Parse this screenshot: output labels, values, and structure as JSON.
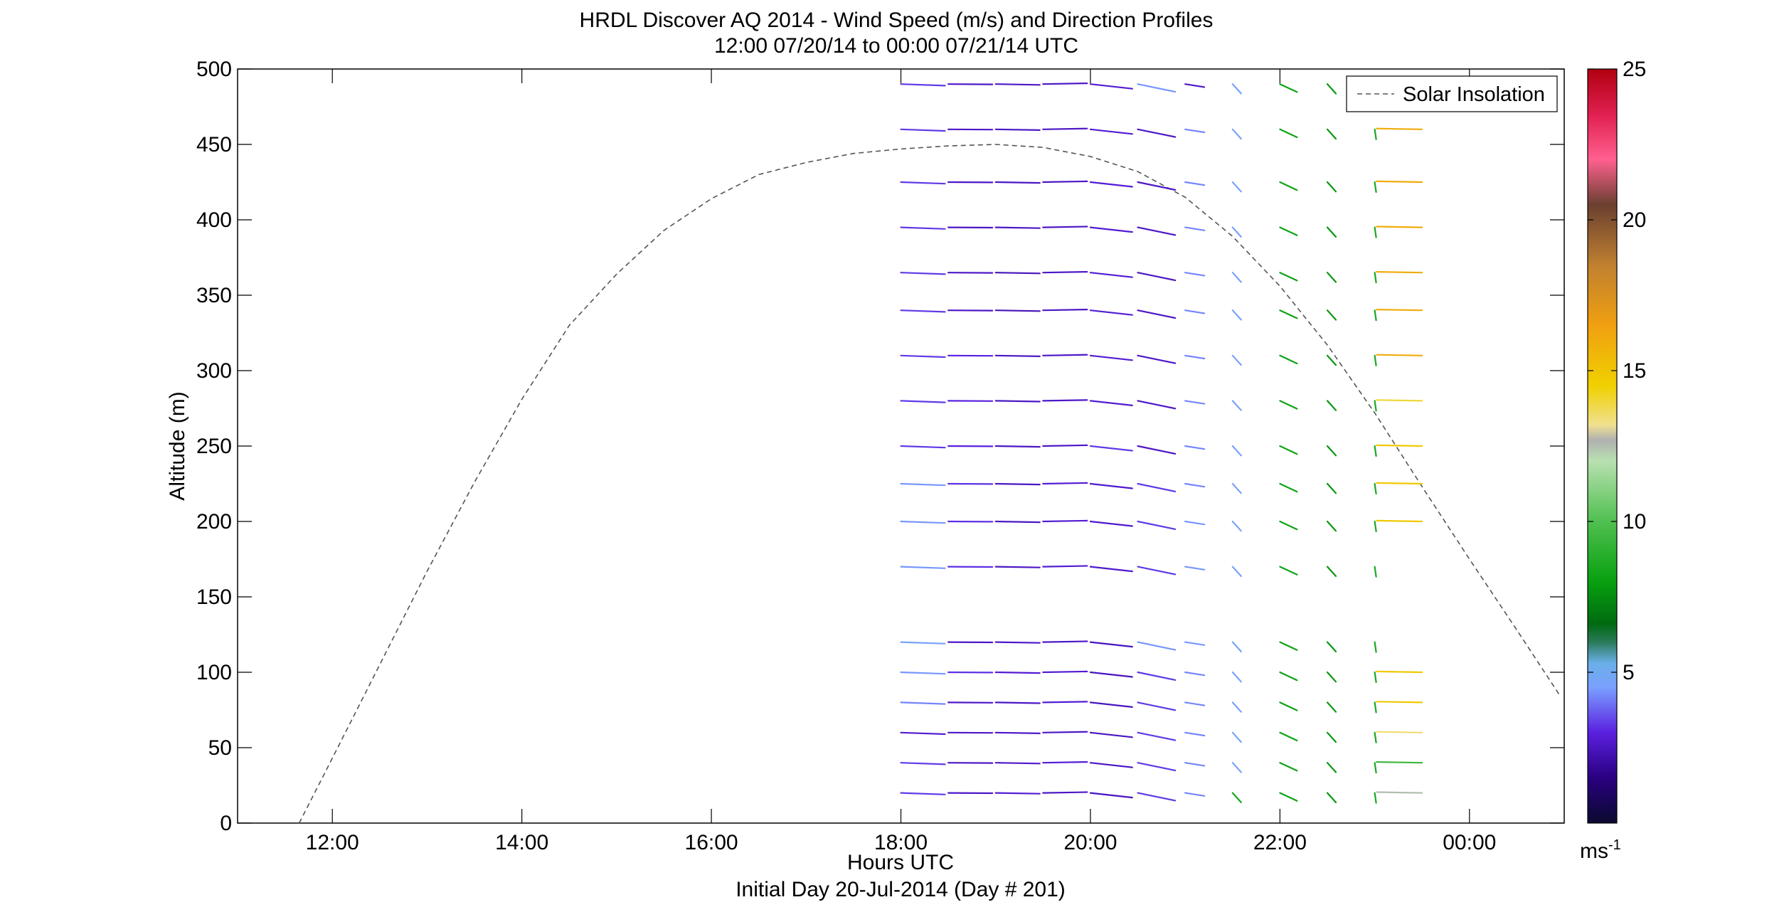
{
  "chart_data": {
    "type": "wind-barb-profile",
    "title": "HRDL Discover AQ 2014 - Wind Speed (m/s) and Direction Profiles",
    "subtitle": "12:00 07/20/14 to 00:00 07/21/14  UTC",
    "xlabel": "Hours UTC",
    "xlabel2": "Initial Day 20-Jul-2014 (Day # 201)",
    "ylabel": "Altitude (m)",
    "xlim": [
      11.0,
      25.0
    ],
    "ylim": [
      0,
      500
    ],
    "x_ticks": [
      {
        "value": 12,
        "label": "12:00"
      },
      {
        "value": 14,
        "label": "14:00"
      },
      {
        "value": 16,
        "label": "16:00"
      },
      {
        "value": 18,
        "label": "18:00"
      },
      {
        "value": 20,
        "label": "20:00"
      },
      {
        "value": 22,
        "label": "22:00"
      },
      {
        "value": 24,
        "label": "00:00"
      }
    ],
    "y_ticks": [
      0,
      50,
      100,
      150,
      200,
      250,
      300,
      350,
      400,
      450,
      500
    ],
    "legend": {
      "entries": [
        "Solar Insolation"
      ],
      "placement": "top-right"
    },
    "colorbar": {
      "range": [
        0,
        25
      ],
      "ticks": [
        5,
        10,
        15,
        20,
        25
      ],
      "unit_label": "ms",
      "unit_exponent": "-1",
      "stops": [
        {
          "v": 0,
          "c": "#0a0a30"
        },
        {
          "v": 1.5,
          "c": "#2a0080"
        },
        {
          "v": 3,
          "c": "#5a20e0"
        },
        {
          "v": 4.5,
          "c": "#7aa0ff"
        },
        {
          "v": 5.3,
          "c": "#6ab0e8"
        },
        {
          "v": 6,
          "c": "#2a7a5a"
        },
        {
          "v": 6.6,
          "c": "#006a10"
        },
        {
          "v": 8,
          "c": "#08a010"
        },
        {
          "v": 10,
          "c": "#50c050"
        },
        {
          "v": 12,
          "c": "#b8e0b0"
        },
        {
          "v": 12.7,
          "c": "#b0b0b0"
        },
        {
          "v": 13.2,
          "c": "#f0e090"
        },
        {
          "v": 14.5,
          "c": "#f0d000"
        },
        {
          "v": 16.5,
          "c": "#f0a010"
        },
        {
          "v": 18.5,
          "c": "#c08030"
        },
        {
          "v": 20.5,
          "c": "#6a4030"
        },
        {
          "v": 22,
          "c": "#ff6090"
        },
        {
          "v": 23.5,
          "c": "#e02050"
        },
        {
          "v": 25,
          "c": "#b00010"
        }
      ]
    },
    "solar_insolation": {
      "x": [
        11.65,
        12.0,
        12.5,
        13.0,
        13.5,
        14.0,
        14.5,
        15.0,
        15.5,
        16.0,
        16.5,
        17.0,
        17.5,
        18.0,
        18.5,
        19.0,
        19.5,
        20.0,
        20.5,
        21.0,
        21.5,
        22.0,
        22.5,
        23.0,
        23.5,
        24.0,
        24.5,
        24.95
      ],
      "y": [
        0,
        43,
        105,
        167,
        226,
        281,
        330,
        364,
        393,
        414,
        430,
        438,
        444,
        447,
        449,
        450,
        448,
        442,
        432,
        415,
        389,
        356,
        317,
        272,
        223,
        175,
        128,
        85
      ]
    },
    "wind_profiles": {
      "times": [
        18.0,
        18.5,
        19.0,
        19.5,
        20.0,
        20.5,
        21.0,
        21.5,
        22.0,
        22.5,
        23.0,
        23.5
      ],
      "altitudes": [
        20,
        40,
        60,
        80,
        100,
        120,
        170,
        200,
        225,
        250,
        280,
        310,
        340,
        365,
        395,
        425,
        460,
        490
      ],
      "speed_rows": [
        [
          3.3,
          2.6,
          2.8,
          2.6,
          2.5,
          3.3,
          4.2,
          8.5,
          8.2,
          7.8,
          8.5,
          12.5
        ],
        [
          3.3,
          2.6,
          2.6,
          2.8,
          2.5,
          3.3,
          4.2,
          4.6,
          8.2,
          7.8,
          8.5,
          9.5
        ],
        [
          2.8,
          2.6,
          2.6,
          2.6,
          2.5,
          3.3,
          4.2,
          4.6,
          8.2,
          7.8,
          8.5,
          13.5
        ],
        [
          4.2,
          2.6,
          2.6,
          2.8,
          2.5,
          3.3,
          4.2,
          4.6,
          8.2,
          7.8,
          8.5,
          14.8
        ],
        [
          4.4,
          3.2,
          2.8,
          2.8,
          2.5,
          3.3,
          4.2,
          4.6,
          8.2,
          7.8,
          8.5,
          14.8
        ],
        [
          4.6,
          2.6,
          2.6,
          2.6,
          2.5,
          4.4,
          4.4,
          4.6,
          8.2,
          7.8,
          8.5,
          null
        ],
        [
          4.4,
          3.2,
          2.6,
          2.8,
          2.7,
          3.3,
          4.4,
          4.6,
          8.2,
          7.8,
          8.5,
          null
        ],
        [
          4.4,
          3.2,
          2.6,
          2.8,
          2.7,
          3.3,
          4.4,
          4.6,
          8.2,
          7.8,
          8.5,
          14.8
        ],
        [
          4.4,
          3.2,
          2.6,
          2.8,
          2.7,
          3.3,
          4.2,
          4.6,
          8.2,
          7.8,
          8.5,
          14.8
        ],
        [
          3.3,
          3.0,
          2.6,
          2.6,
          3.3,
          2.6,
          4.2,
          4.6,
          8.2,
          7.8,
          8.5,
          14.8
        ],
        [
          3.3,
          3.0,
          2.6,
          2.6,
          2.8,
          2.6,
          4.2,
          4.6,
          8.2,
          7.8,
          8.5,
          14.0
        ],
        [
          3.3,
          3.0,
          2.6,
          2.6,
          2.8,
          2.6,
          4.2,
          4.6,
          8.2,
          7.8,
          8.5,
          16.0
        ],
        [
          3.3,
          2.6,
          2.4,
          2.6,
          2.8,
          2.6,
          4.2,
          4.6,
          8.2,
          7.8,
          8.5,
          16.0
        ],
        [
          3.3,
          2.6,
          2.4,
          2.6,
          2.8,
          2.6,
          4.2,
          4.6,
          8.2,
          7.8,
          8.5,
          16.0
        ],
        [
          3.3,
          2.6,
          2.6,
          2.6,
          2.8,
          2.6,
          4.2,
          4.6,
          8.2,
          7.8,
          8.5,
          16.0
        ],
        [
          3.3,
          2.6,
          2.6,
          2.6,
          2.8,
          2.6,
          4.2,
          4.6,
          8.2,
          7.8,
          8.5,
          16.0
        ],
        [
          3.3,
          2.6,
          2.6,
          2.6,
          2.8,
          2.6,
          4.2,
          4.6,
          8.2,
          7.8,
          8.5,
          16.0
        ],
        [
          3.3,
          2.6,
          2.6,
          2.6,
          2.8,
          4.4,
          2.6,
          4.6,
          8.2,
          7.8,
          8.5,
          null
        ]
      ]
    }
  }
}
